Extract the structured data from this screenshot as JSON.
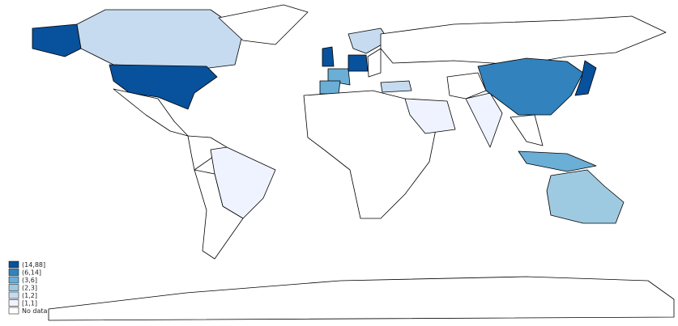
{
  "legend": {
    "items": [
      {
        "label": "(14,88]",
        "color": "#08519c"
      },
      {
        "label": "(6,14]",
        "color": "#3182bd"
      },
      {
        "label": "(3,6]",
        "color": "#6baed6"
      },
      {
        "label": "(2,3]",
        "color": "#9ecae1"
      },
      {
        "label": "(1,2]",
        "color": "#c6dbef"
      },
      {
        "label": "[1,1]",
        "color": "#eff3ff"
      },
      {
        "label": "No data",
        "color": "#ffffff"
      }
    ]
  }
}
